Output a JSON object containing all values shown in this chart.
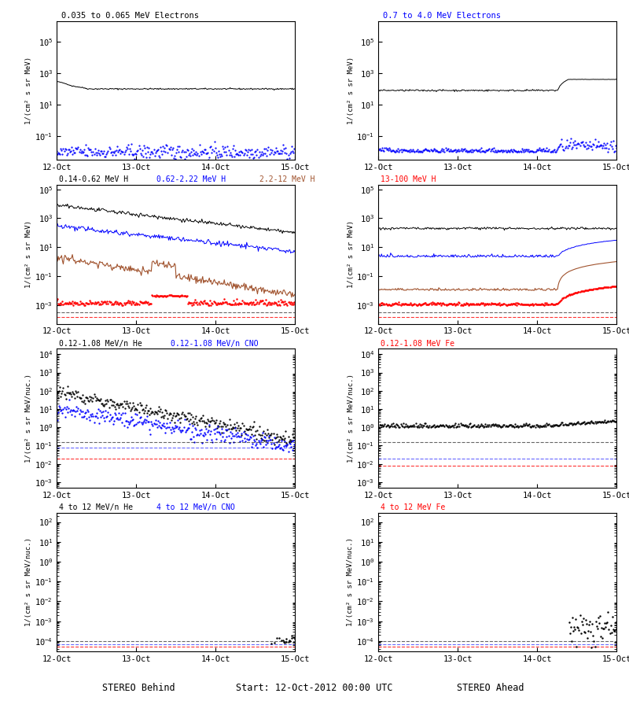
{
  "title_row1_left": "0.035 to 0.065 MeV Electrons",
  "title_row1_right": "0.7 to 4.0 MeV Electrons",
  "title_row2_labels": [
    "0.14-0.62 MeV H",
    "0.62-2.22 MeV H",
    "2.2-12 MeV H",
    "13-100 MeV H"
  ],
  "title_row2_colors": [
    "black",
    "blue",
    "#a0522d",
    "red"
  ],
  "title_row3_left_labels": [
    "0.12-1.08 MeV/n He",
    "0.12-1.08 MeV/n CNO"
  ],
  "title_row3_left_colors": [
    "black",
    "blue"
  ],
  "title_row3_right_label": "0.12-1.08 MeV Fe",
  "title_row3_right_color": "red",
  "title_row4_left_labels": [
    "4 to 12 MeV/n He",
    "4 to 12 MeV/n CNO"
  ],
  "title_row4_left_colors": [
    "black",
    "blue"
  ],
  "title_row4_right_label": "4 to 12 MeV Fe",
  "title_row4_right_color": "red",
  "xlabel_left": "STEREO Behind",
  "xlabel_center": "Start: 12-Oct-2012 00:00 UTC",
  "xlabel_right": "STEREO Ahead",
  "ylabel_electrons": "1/(cm² s sr MeV)",
  "ylabel_H": "1/(cm² s sr MeV)",
  "ylabel_heavy": "1/(cm² s sr MeV/nuc.)",
  "xticklabels": [
    "12-Oct",
    "13-Oct",
    "14-Oct",
    "15-Oct"
  ],
  "brown_color": "#a0522d"
}
